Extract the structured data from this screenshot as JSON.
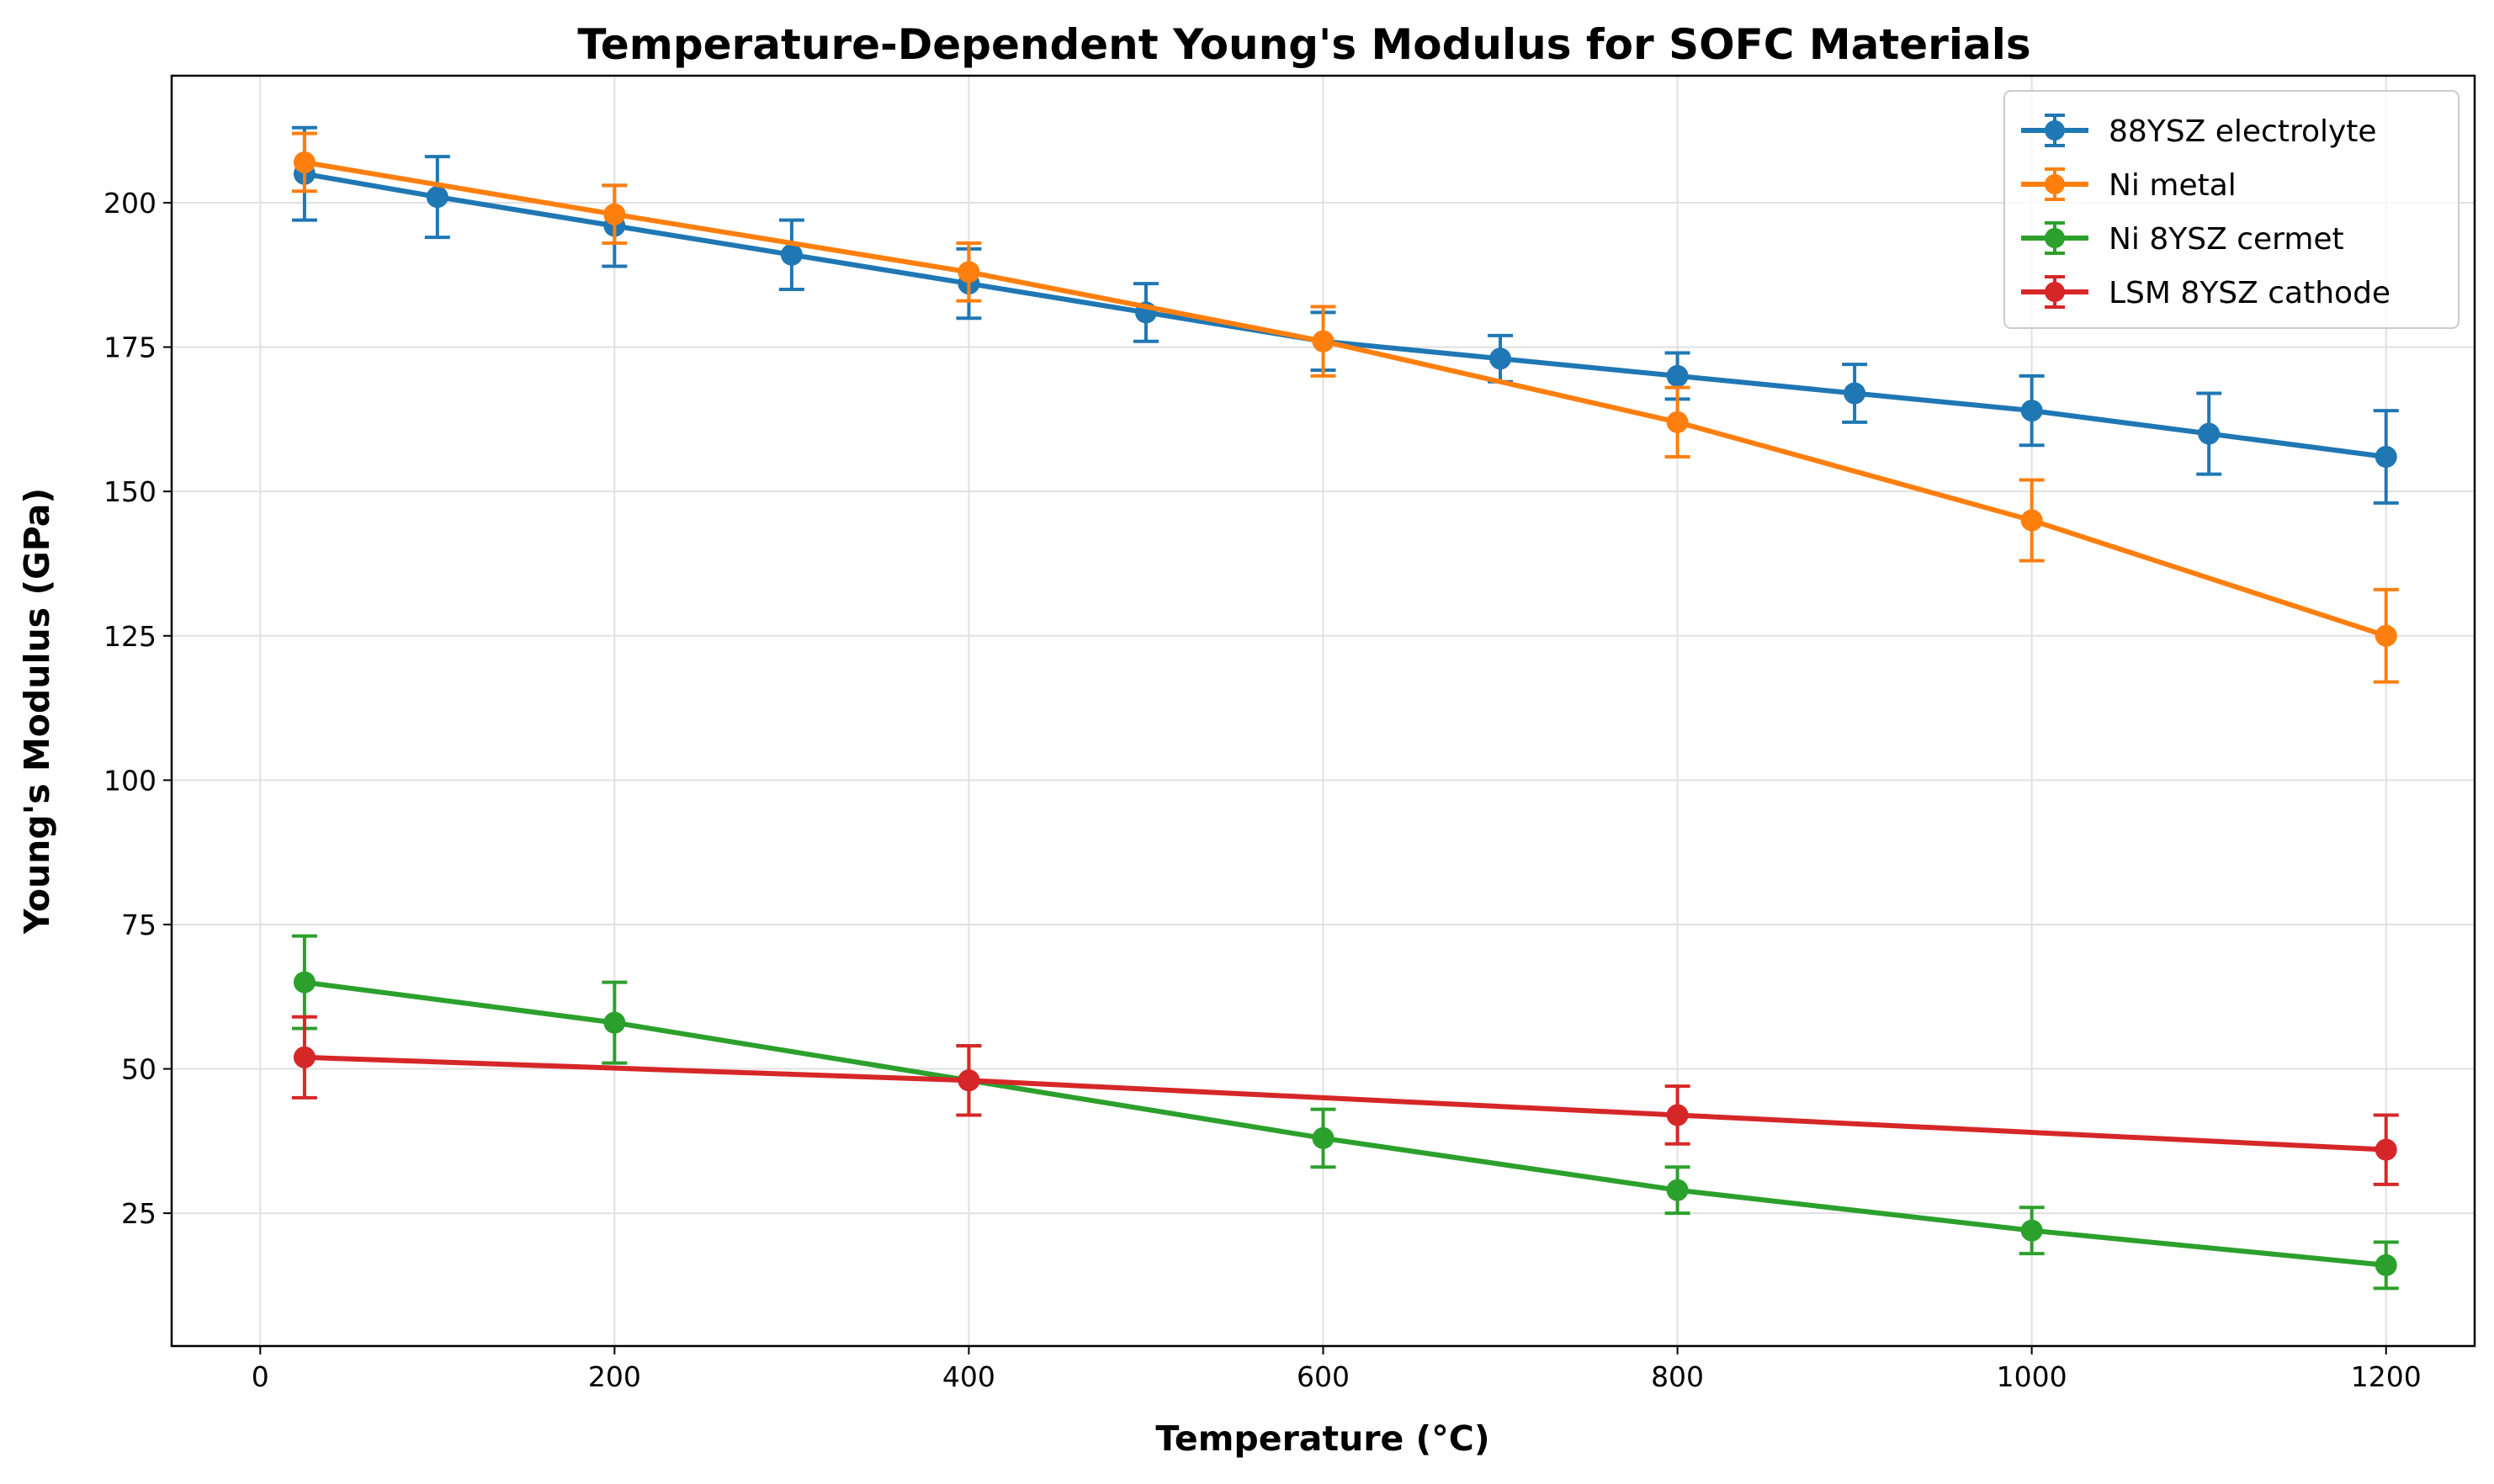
{
  "chart_data": {
    "type": "line",
    "title": "Temperature-Dependent Young's Modulus for SOFC Materials",
    "xlabel": "Temperature (°C)",
    "ylabel": "Young's Modulus (GPa)",
    "xlim": [
      -50,
      1250
    ],
    "ylim": [
      2,
      222
    ],
    "x_ticks": [
      "0",
      "200",
      "400",
      "600",
      "800",
      "1000",
      "1200"
    ],
    "y_ticks": [
      "25",
      "50",
      "75",
      "100",
      "125",
      "150",
      "175",
      "200"
    ],
    "grid": true,
    "legend_position": "top-right",
    "error_bars": true,
    "series": [
      {
        "name": "88YSZ electrolyte",
        "color": "#1f77b4",
        "x": [
          25,
          100,
          200,
          300,
          400,
          500,
          600,
          700,
          800,
          900,
          1000,
          1100,
          1200
        ],
        "y": [
          205,
          201,
          196,
          191,
          186,
          181,
          176,
          173,
          170,
          167,
          164,
          160,
          156
        ],
        "err": [
          8,
          7,
          7,
          6,
          6,
          5,
          5,
          4,
          4,
          5,
          6,
          7,
          8
        ]
      },
      {
        "name": "Ni metal",
        "color": "#ff7f0e",
        "x": [
          25,
          200,
          400,
          600,
          800,
          1000,
          1200
        ],
        "y": [
          207,
          198,
          188,
          176,
          162,
          145,
          125
        ],
        "err": [
          5,
          5,
          5,
          6,
          6,
          7,
          8
        ]
      },
      {
        "name": "Ni 8YSZ cermet",
        "color": "#2ca02c",
        "x": [
          25,
          200,
          400,
          600,
          800,
          1000,
          1200
        ],
        "y": [
          65,
          58,
          48,
          38,
          29,
          22,
          16
        ],
        "err": [
          8,
          7,
          6,
          5,
          4,
          4,
          4
        ]
      },
      {
        "name": "LSM 8YSZ cathode",
        "color": "#d62728",
        "x": [
          25,
          400,
          800,
          1200
        ],
        "y": [
          52,
          48,
          42,
          36
        ],
        "err": [
          7,
          6,
          5,
          6
        ]
      }
    ]
  }
}
